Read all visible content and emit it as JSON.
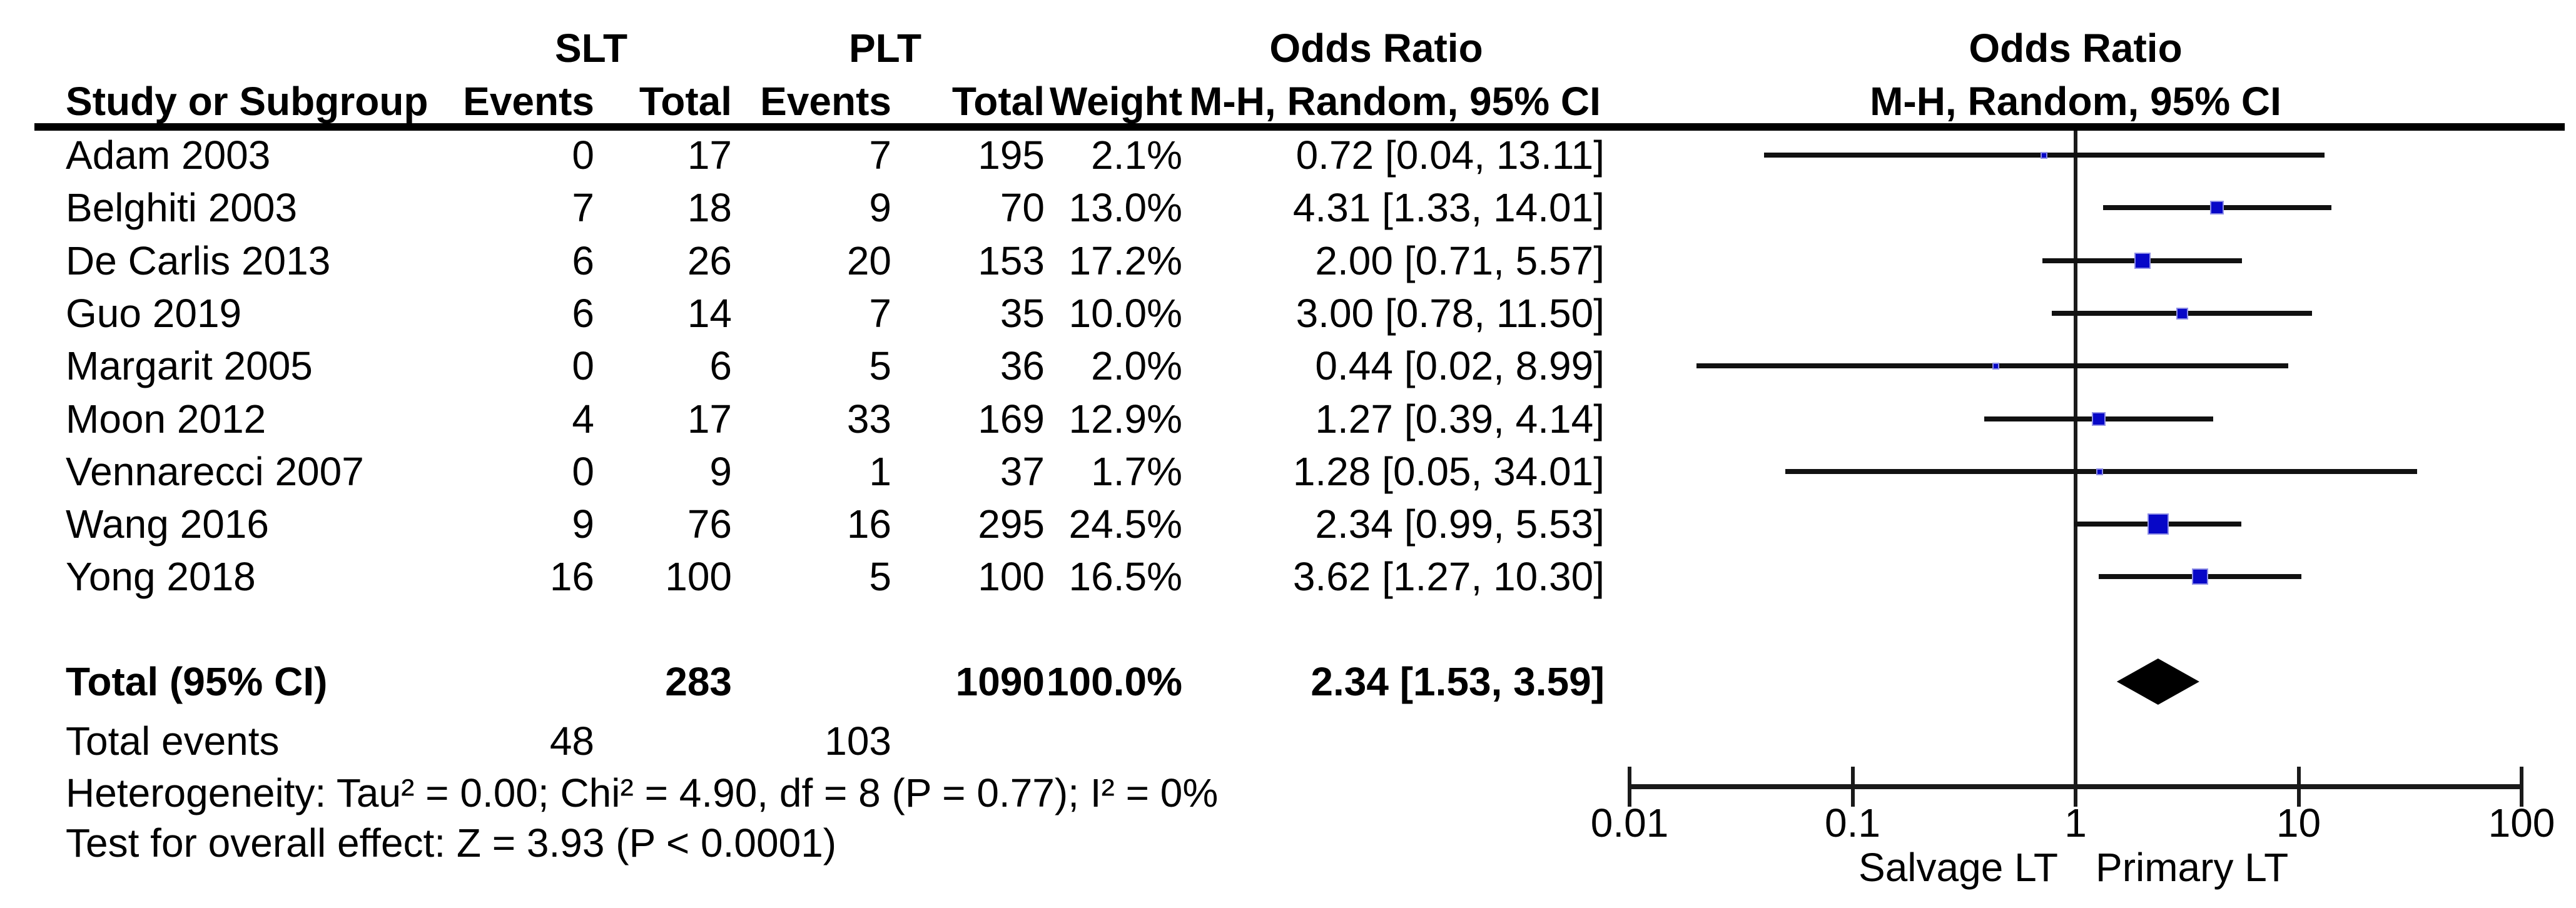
{
  "table": {
    "group_headers": {
      "slt": "SLT",
      "plt": "PLT",
      "or_stat": "Odds Ratio",
      "or_plot": "Odds Ratio"
    },
    "columns": {
      "study": "Study or Subgroup",
      "events1": "Events",
      "total1": "Total",
      "events2": "Events",
      "total2": "Total",
      "weight": "Weight",
      "mh_stat": "M-H, Random, 95% CI",
      "mh_plot": "M-H, Random, 95% CI"
    },
    "rows": [
      {
        "study": "Adam 2003",
        "events1": "0",
        "total1": "17",
        "events2": "7",
        "total2": "195",
        "weight": "2.1%",
        "ci_text": "0.72 [0.04, 13.11]"
      },
      {
        "study": "Belghiti 2003",
        "events1": "7",
        "total1": "18",
        "events2": "9",
        "total2": "70",
        "weight": "13.0%",
        "ci_text": "4.31 [1.33, 14.01]"
      },
      {
        "study": "De Carlis 2013",
        "events1": "6",
        "total1": "26",
        "events2": "20",
        "total2": "153",
        "weight": "17.2%",
        "ci_text": "2.00 [0.71, 5.57]"
      },
      {
        "study": "Guo 2019",
        "events1": "6",
        "total1": "14",
        "events2": "7",
        "total2": "35",
        "weight": "10.0%",
        "ci_text": "3.00 [0.78, 11.50]"
      },
      {
        "study": "Margarit 2005",
        "events1": "0",
        "total1": "6",
        "events2": "5",
        "total2": "36",
        "weight": "2.0%",
        "ci_text": "0.44 [0.02, 8.99]"
      },
      {
        "study": "Moon 2012",
        "events1": "4",
        "total1": "17",
        "events2": "33",
        "total2": "169",
        "weight": "12.9%",
        "ci_text": "1.27 [0.39, 4.14]"
      },
      {
        "study": "Vennarecci 2007",
        "events1": "0",
        "total1": "9",
        "events2": "1",
        "total2": "37",
        "weight": "1.7%",
        "ci_text": "1.28 [0.05, 34.01]"
      },
      {
        "study": "Wang 2016",
        "events1": "9",
        "total1": "76",
        "events2": "16",
        "total2": "295",
        "weight": "24.5%",
        "ci_text": "2.34 [0.99, 5.53]"
      },
      {
        "study": "Yong 2018",
        "events1": "16",
        "total1": "100",
        "events2": "5",
        "total2": "100",
        "weight": "16.5%",
        "ci_text": "3.62 [1.27, 10.30]"
      }
    ],
    "total_row": {
      "label": "Total (95% CI)",
      "total1": "283",
      "total2": "1090",
      "weight": "100.0%",
      "ci_text": "2.34 [1.53, 3.59]"
    },
    "total_events": {
      "label": "Total events",
      "events1": "48",
      "events2": "103"
    },
    "heterogeneity": "Heterogeneity: Tau² = 0.00; Chi² = 4.90, df = 8 (P = 0.77); I² = 0%",
    "overall_effect": "Test for overall effect: Z = 3.93 (P < 0.0001)"
  },
  "chart_data": {
    "type": "forest",
    "effect_measure": "Odds Ratio, M-H, Random, 95% CI",
    "x_axis": {
      "scale": "log10",
      "ticks": [
        0.01,
        0.1,
        1,
        10,
        100
      ],
      "tick_labels": [
        "0.01",
        "0.1",
        "1",
        "10",
        "100"
      ],
      "left_label": "Salvage LT",
      "right_label": "Primary LT",
      "range": [
        0.01,
        100
      ]
    },
    "studies": [
      {
        "name": "Adam 2003",
        "or": 0.72,
        "lo": 0.04,
        "hi": 13.11,
        "weight_pct": 2.1
      },
      {
        "name": "Belghiti 2003",
        "or": 4.31,
        "lo": 1.33,
        "hi": 14.01,
        "weight_pct": 13.0
      },
      {
        "name": "De Carlis 2013",
        "or": 2.0,
        "lo": 0.71,
        "hi": 5.57,
        "weight_pct": 17.2
      },
      {
        "name": "Guo 2019",
        "or": 3.0,
        "lo": 0.78,
        "hi": 11.5,
        "weight_pct": 10.0
      },
      {
        "name": "Margarit 2005",
        "or": 0.44,
        "lo": 0.02,
        "hi": 8.99,
        "weight_pct": 2.0
      },
      {
        "name": "Moon 2012",
        "or": 1.27,
        "lo": 0.39,
        "hi": 4.14,
        "weight_pct": 12.9
      },
      {
        "name": "Vennarecci 2007",
        "or": 1.28,
        "lo": 0.05,
        "hi": 34.01,
        "weight_pct": 1.7
      },
      {
        "name": "Wang 2016",
        "or": 2.34,
        "lo": 0.99,
        "hi": 5.53,
        "weight_pct": 24.5
      },
      {
        "name": "Yong 2018",
        "or": 3.62,
        "lo": 1.27,
        "hi": 10.3,
        "weight_pct": 16.5
      }
    ],
    "overall": {
      "name": "Total (95% CI)",
      "or": 2.34,
      "lo": 1.53,
      "hi": 3.59,
      "weight_pct": 100.0
    },
    "colors": {
      "marker_fill": "#0707c7",
      "marker_edge": "#8f8fe6",
      "line": "#111111",
      "diamond": "#000000",
      "text": "#000000"
    }
  }
}
